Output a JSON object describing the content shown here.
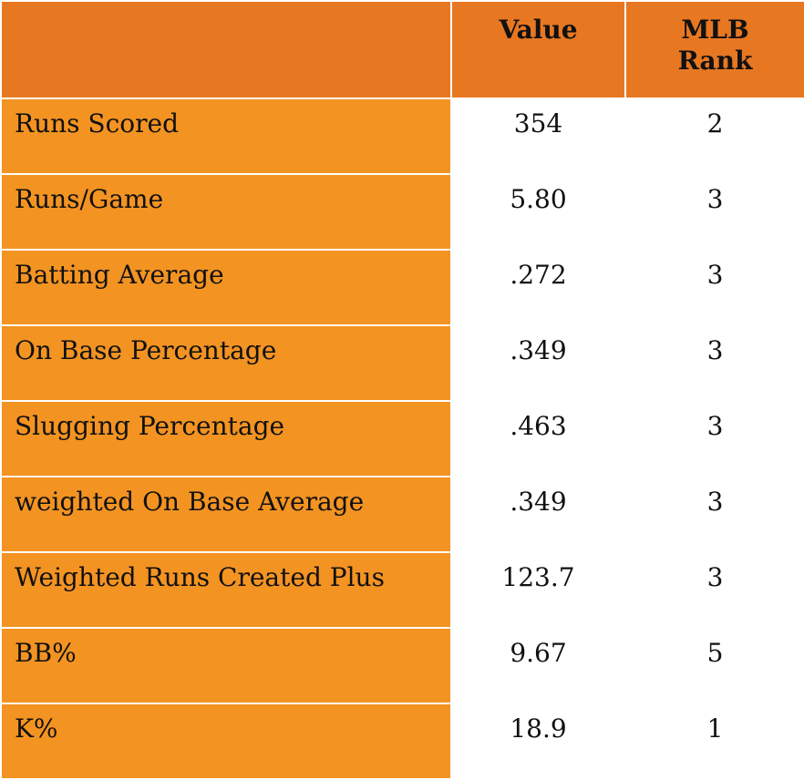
{
  "table": {
    "columns": [
      "",
      "Value",
      "MLB\nRank"
    ],
    "header": {
      "value_label": "Value",
      "rank_label_line1": "MLB",
      "rank_label_line2": "Rank"
    },
    "rows": [
      {
        "metric": "Runs Scored",
        "value": "354",
        "rank": "2"
      },
      {
        "metric": "Runs/Game",
        "value": "5.80",
        "rank": "3"
      },
      {
        "metric": "Batting Average",
        "value": ".272",
        "rank": "3"
      },
      {
        "metric": "On Base Percentage",
        "value": ".349",
        "rank": "3"
      },
      {
        "metric": "Slugging Percentage",
        "value": ".463",
        "rank": "3"
      },
      {
        "metric": "weighted On Base Average",
        "value": ".349",
        "rank": "3"
      },
      {
        "metric": "Weighted Runs Created Plus",
        "value": "123.7",
        "rank": "3"
      },
      {
        "metric": "BB%",
        "value": "9.67",
        "rank": "5"
      },
      {
        "metric": "K%",
        "value": "18.9",
        "rank": "1"
      }
    ]
  },
  "colors": {
    "header_bg": "#E87722",
    "label_bg": "#F39322",
    "cell_bg": "#FFFFFF",
    "text": "#111111"
  }
}
